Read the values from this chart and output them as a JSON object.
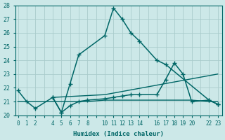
{
  "background_color": "#cce8e8",
  "grid_color": "#aacccc",
  "line_color": "#006666",
  "xlabel": "Humidex (Indice chaleur)",
  "ylim": [
    20,
    28
  ],
  "yticks": [
    20,
    21,
    22,
    23,
    24,
    25,
    26,
    27,
    28
  ],
  "xtick_positions": [
    0,
    1,
    2,
    4,
    5,
    6,
    7,
    8,
    10,
    11,
    12,
    13,
    14,
    16,
    17,
    18,
    19,
    20,
    22,
    23
  ],
  "xlim": [
    -0.3,
    23.5
  ],
  "lines": [
    {
      "x": [
        0,
        1,
        2,
        4,
        5,
        6,
        7,
        10,
        11,
        12,
        13,
        14,
        16,
        17,
        22,
        23
      ],
      "y": [
        21.8,
        21.0,
        20.5,
        21.3,
        20.2,
        22.3,
        24.4,
        25.8,
        27.8,
        27.0,
        26.0,
        25.4,
        24.0,
        23.7,
        21.1,
        20.8
      ],
      "marker": "+",
      "markersize": 4,
      "linewidth": 1.1
    },
    {
      "x": [
        0,
        1,
        2,
        4,
        5,
        6,
        7,
        8,
        10,
        11,
        12,
        13,
        14,
        16,
        17,
        18,
        19,
        20,
        22,
        23
      ],
      "y": [
        21.0,
        21.0,
        21.0,
        21.0,
        21.0,
        21.0,
        21.0,
        21.0,
        21.1,
        21.1,
        21.1,
        21.1,
        21.1,
        21.1,
        21.1,
        21.1,
        21.1,
        21.1,
        21.0,
        21.0
      ],
      "marker": null,
      "markersize": 0,
      "linewidth": 1.0
    },
    {
      "x": [
        4,
        10,
        23
      ],
      "y": [
        21.3,
        21.5,
        23.0
      ],
      "marker": null,
      "markersize": 0,
      "linewidth": 1.0
    },
    {
      "x": [
        4,
        5,
        6,
        7,
        8,
        10,
        11,
        12,
        13,
        14,
        16,
        17,
        18,
        19,
        20,
        22,
        23
      ],
      "y": [
        21.3,
        20.2,
        20.7,
        21.0,
        21.1,
        21.2,
        21.3,
        21.4,
        21.5,
        21.5,
        21.5,
        22.6,
        23.8,
        23.0,
        21.0,
        21.1,
        20.8
      ],
      "marker": "+",
      "markersize": 4,
      "linewidth": 1.1
    }
  ]
}
